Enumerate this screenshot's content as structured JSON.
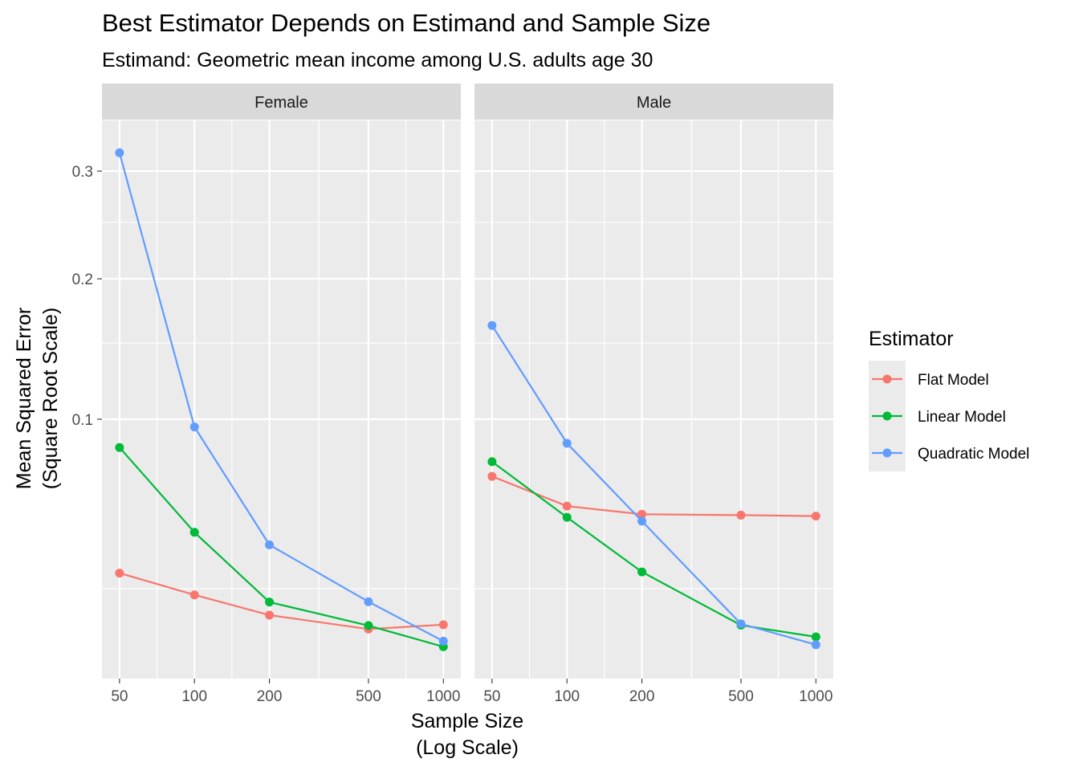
{
  "chart_data": {
    "type": "line",
    "title": "Best Estimator Depends on Estimand and Sample Size",
    "subtitle": "Estimand: Geometric mean income among U.S. adults age 30",
    "xlabel": [
      "Sample Size",
      "(Log Scale)"
    ],
    "ylabel": [
      "Mean Squared Error",
      "(Square Root Scale)"
    ],
    "x_scale": "log",
    "y_scale": "sqrt",
    "x_ticks": [
      50,
      100,
      200,
      500,
      1000
    ],
    "x_tick_labels": [
      "50",
      "100",
      "200",
      "500",
      "1000"
    ],
    "y_ticks": [
      0.1,
      0.2,
      0.3
    ],
    "y_tick_labels": [
      "0.1",
      "0.2",
      "0.3"
    ],
    "ylim": [
      0.0055,
      0.354
    ],
    "grid": true,
    "legend": {
      "title": "Estimator",
      "position": "right",
      "entries": [
        "Flat Model",
        "Linear Model",
        "Quadratic Model"
      ]
    },
    "x": [
      50,
      100,
      200,
      500,
      1000
    ],
    "panels": [
      {
        "name": "Female",
        "series": [
          {
            "name": "Flat Model",
            "color": "#F8766D",
            "values": [
              0.0298,
              0.0232,
              0.0178,
              0.0145,
              0.0155
            ]
          },
          {
            "name": "Linear Model",
            "color": "#00BA38",
            "values": [
              0.084,
              0.0444,
              0.0212,
              0.0153,
              0.0108
            ]
          },
          {
            "name": "Quadratic Model",
            "color": "#619CFF",
            "values": [
              0.319,
              0.0955,
              0.0396,
              0.0213,
              0.0119
            ]
          }
        ]
      },
      {
        "name": "Male",
        "series": [
          {
            "name": "Flat Model",
            "color": "#F8766D",
            "values": [
              0.0691,
              0.0553,
              0.0518,
              0.0514,
              0.051
            ]
          },
          {
            "name": "Linear Model",
            "color": "#00BA38",
            "values": [
              0.0765,
              0.0505,
              0.0302,
              0.0154,
              0.0128
            ]
          },
          {
            "name": "Quadratic Model",
            "color": "#619CFF",
            "values": [
              0.163,
              0.0863,
              0.0489,
              0.0157,
              0.0112
            ]
          }
        ]
      }
    ]
  }
}
